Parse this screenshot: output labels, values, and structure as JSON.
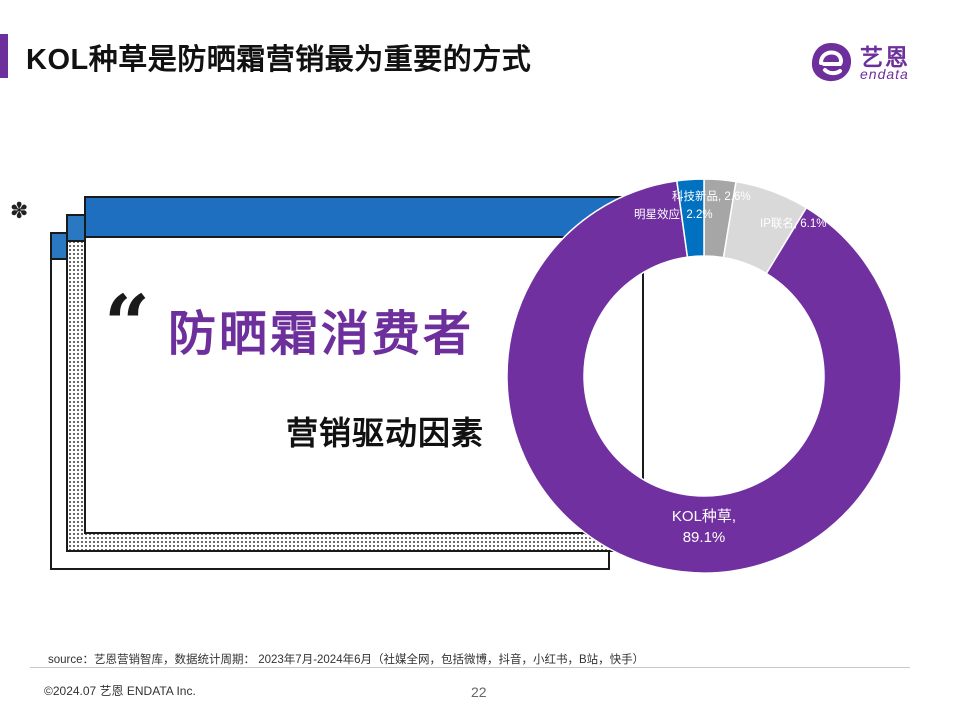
{
  "header": {
    "title": "KOL种草是防晒霜营销最为重要的方式",
    "accent_color": "#6d2f9c"
  },
  "logo": {
    "cn": "艺恩",
    "en": "endata",
    "color": "#6d2f9c"
  },
  "decor": {
    "gear_icon": "✽",
    "quote_mark": "“"
  },
  "card": {
    "headline": "防晒霜消费者",
    "subheadline": "营销驱动因素",
    "band_color": "#1f6fc0"
  },
  "chart_data": {
    "type": "pie",
    "variant": "donut",
    "slices": [
      {
        "label": "KOL种草",
        "value": 89.1,
        "display": "KOL种草, 89.1%",
        "color": "#7030a0"
      },
      {
        "label": "明星效应",
        "value": 2.2,
        "display": "明星效应, 2.2%",
        "color": "#0070c0"
      },
      {
        "label": "科技新品",
        "value": 2.6,
        "display": "科技新品, 2.6%",
        "color": "#a6a6a6"
      },
      {
        "label": "IP联名",
        "value": 6.1,
        "display": "IP联名, 6.1%",
        "color": "#d9d9d9"
      }
    ]
  },
  "footer": {
    "source": "source：艺恩营销智库，数据统计周期： 2023年7月-2024年6月（社媒全网，包括微博，抖音，小红书，B站，快手）",
    "copyright": "©2024.07 艺恩 ENDATA Inc.",
    "page_number": "22"
  }
}
